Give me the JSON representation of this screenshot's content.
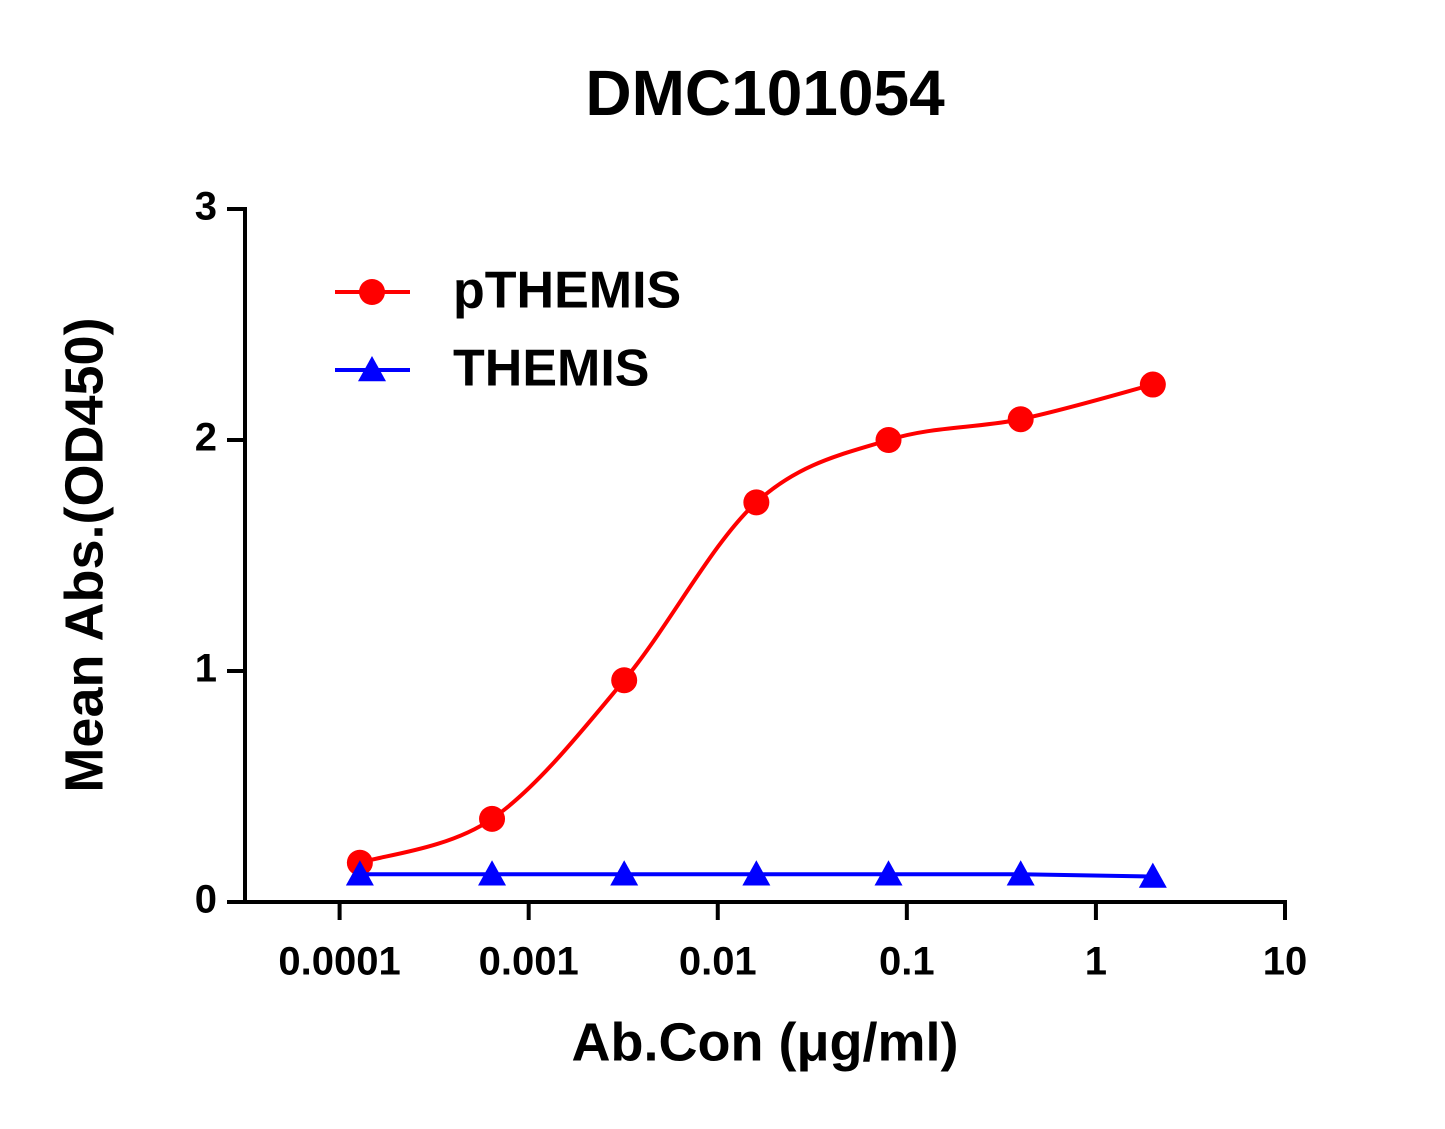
{
  "chart_data": {
    "type": "line",
    "title": "DMC101054",
    "x_label": "Ab.Con (μg/ml)",
    "y_label": "Mean Abs.(OD450)",
    "x": [
      0.000128,
      0.00064,
      0.0032,
      0.016,
      0.08,
      0.4,
      2
    ],
    "series": [
      {
        "name": "pTHEMIS",
        "color": "#ff0000",
        "marker": "circle",
        "smooth": true,
        "values": [
          0.17,
          0.36,
          0.96,
          1.73,
          2.0,
          2.09,
          2.24
        ]
      },
      {
        "name": "THEMIS",
        "color": "#0000ff",
        "marker": "triangle",
        "smooth": false,
        "values": [
          0.12,
          0.12,
          0.12,
          0.12,
          0.12,
          0.12,
          0.11
        ]
      }
    ],
    "xscale": "log",
    "xlim": [
      3.16e-05,
      10
    ],
    "xticks": [
      0.0001,
      0.001,
      0.01,
      0.1,
      1,
      10
    ],
    "ylim": [
      0,
      3
    ],
    "yticks": [
      0,
      1,
      2,
      3
    ],
    "legend": "upper left"
  }
}
